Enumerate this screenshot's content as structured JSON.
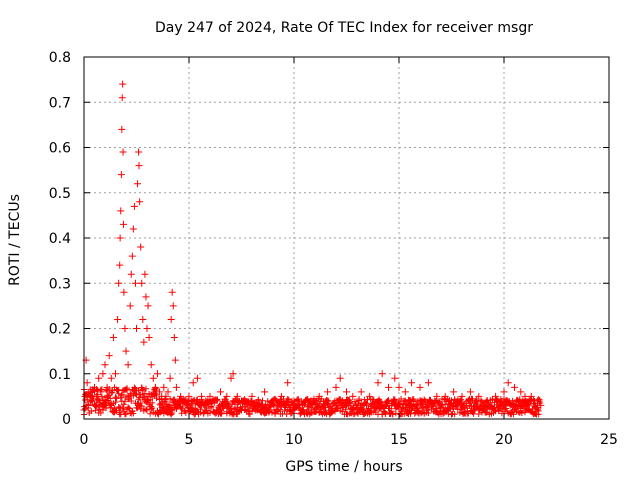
{
  "chart_data": {
    "type": "scatter",
    "title": "Day 247 of 2024, Rate Of TEC Index for receiver msgr",
    "xlabel": "GPS time / hours",
    "ylabel": "ROTI / TECUs",
    "xlim": [
      0,
      25
    ],
    "ylim": [
      0,
      0.8
    ],
    "xticks": [
      "0",
      "5",
      "10",
      "15",
      "20",
      "25"
    ],
    "yticks": [
      "0",
      "0.1",
      "0.2",
      "0.3",
      "0.4",
      "0.5",
      "0.6",
      "0.7",
      "0.8"
    ],
    "grid": true,
    "marker": "plus",
    "color": "#ff0000",
    "series": [
      {
        "points": [
          [
            0.0,
            0.02
          ],
          [
            0.05,
            0.05
          ],
          [
            0.1,
            0.13
          ],
          [
            0.15,
            0.08
          ],
          [
            0.2,
            0.03
          ],
          [
            0.3,
            0.06
          ],
          [
            0.4,
            0.04
          ],
          [
            0.5,
            0.07
          ],
          [
            0.6,
            0.05
          ],
          [
            0.7,
            0.09
          ],
          [
            0.8,
            0.06
          ],
          [
            0.9,
            0.1
          ],
          [
            1.0,
            0.12
          ],
          [
            1.1,
            0.07
          ],
          [
            1.2,
            0.14
          ],
          [
            1.3,
            0.09
          ],
          [
            1.4,
            0.18
          ],
          [
            1.5,
            0.1
          ],
          [
            1.6,
            0.22
          ],
          [
            1.65,
            0.3
          ],
          [
            1.7,
            0.34
          ],
          [
            1.72,
            0.4
          ],
          [
            1.75,
            0.46
          ],
          [
            1.78,
            0.54
          ],
          [
            1.8,
            0.64
          ],
          [
            1.82,
            0.71
          ],
          [
            1.84,
            0.74
          ],
          [
            1.86,
            0.59
          ],
          [
            1.88,
            0.43
          ],
          [
            1.9,
            0.28
          ],
          [
            1.95,
            0.2
          ],
          [
            2.0,
            0.15
          ],
          [
            2.1,
            0.12
          ],
          [
            2.2,
            0.25
          ],
          [
            2.25,
            0.32
          ],
          [
            2.3,
            0.36
          ],
          [
            2.35,
            0.42
          ],
          [
            2.4,
            0.47
          ],
          [
            2.45,
            0.3
          ],
          [
            2.5,
            0.2
          ],
          [
            2.55,
            0.52
          ],
          [
            2.6,
            0.59
          ],
          [
            2.62,
            0.56
          ],
          [
            2.65,
            0.48
          ],
          [
            2.7,
            0.38
          ],
          [
            2.75,
            0.3
          ],
          [
            2.8,
            0.22
          ],
          [
            2.85,
            0.17
          ],
          [
            2.9,
            0.32
          ],
          [
            2.95,
            0.27
          ],
          [
            3.0,
            0.2
          ],
          [
            3.05,
            0.25
          ],
          [
            3.1,
            0.18
          ],
          [
            3.2,
            0.12
          ],
          [
            3.3,
            0.09
          ],
          [
            3.4,
            0.07
          ],
          [
            3.5,
            0.1
          ],
          [
            3.6,
            0.06
          ],
          [
            3.7,
            0.05
          ],
          [
            3.8,
            0.07
          ],
          [
            3.9,
            0.05
          ],
          [
            4.0,
            0.06
          ],
          [
            4.1,
            0.09
          ],
          [
            4.15,
            0.22
          ],
          [
            4.2,
            0.28
          ],
          [
            4.25,
            0.25
          ],
          [
            4.3,
            0.18
          ],
          [
            4.35,
            0.13
          ],
          [
            4.4,
            0.07
          ],
          [
            4.6,
            0.05
          ],
          [
            4.8,
            0.04
          ],
          [
            5.0,
            0.05
          ],
          [
            5.2,
            0.08
          ],
          [
            5.4,
            0.09
          ],
          [
            5.6,
            0.05
          ],
          [
            5.8,
            0.04
          ],
          [
            6.0,
            0.05
          ],
          [
            6.2,
            0.04
          ],
          [
            6.5,
            0.06
          ],
          [
            6.8,
            0.05
          ],
          [
            7.0,
            0.09
          ],
          [
            7.1,
            0.1
          ],
          [
            7.3,
            0.05
          ],
          [
            7.6,
            0.04
          ],
          [
            8.0,
            0.05
          ],
          [
            8.3,
            0.04
          ],
          [
            8.6,
            0.06
          ],
          [
            9.0,
            0.04
          ],
          [
            9.4,
            0.05
          ],
          [
            9.7,
            0.08
          ],
          [
            10.0,
            0.04
          ],
          [
            10.4,
            0.03
          ],
          [
            10.8,
            0.04
          ],
          [
            11.2,
            0.05
          ],
          [
            11.6,
            0.06
          ],
          [
            12.0,
            0.07
          ],
          [
            12.2,
            0.09
          ],
          [
            12.5,
            0.06
          ],
          [
            12.8,
            0.05
          ],
          [
            13.2,
            0.06
          ],
          [
            13.6,
            0.05
          ],
          [
            14.0,
            0.08
          ],
          [
            14.2,
            0.1
          ],
          [
            14.5,
            0.07
          ],
          [
            14.8,
            0.09
          ],
          [
            15.0,
            0.07
          ],
          [
            15.3,
            0.06
          ],
          [
            15.6,
            0.08
          ],
          [
            16.0,
            0.07
          ],
          [
            16.4,
            0.08
          ],
          [
            16.8,
            0.05
          ],
          [
            17.2,
            0.05
          ],
          [
            17.6,
            0.06
          ],
          [
            18.0,
            0.05
          ],
          [
            18.4,
            0.06
          ],
          [
            18.8,
            0.05
          ],
          [
            19.2,
            0.04
          ],
          [
            19.6,
            0.05
          ],
          [
            20.0,
            0.06
          ],
          [
            20.2,
            0.08
          ],
          [
            20.5,
            0.07
          ],
          [
            20.8,
            0.06
          ],
          [
            21.0,
            0.05
          ],
          [
            21.3,
            0.05
          ],
          [
            21.6,
            0.04
          ],
          [
            21.75,
            0.03
          ]
        ]
      }
    ]
  }
}
